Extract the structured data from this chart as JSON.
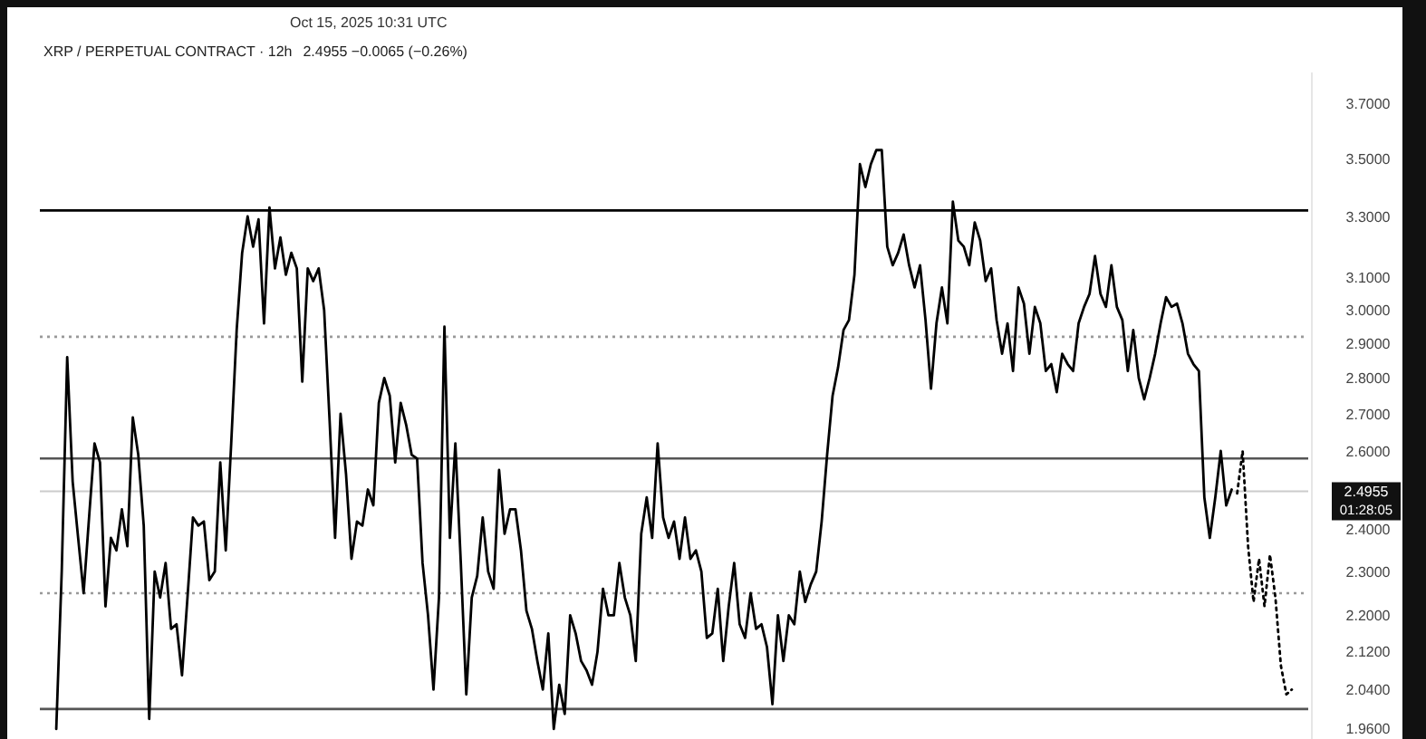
{
  "chart_data": {
    "type": "line",
    "title": "XRP / PERPETUAL CONTRACT · 12h",
    "subtitle": "2.4955 −0.0065 (−0.26%)",
    "annotations": [
      "Oct 15, 2025 10:31 UTC",
      "01:28:05"
    ],
    "categories": [
      null,
      null,
      null,
      null,
      null,
      null,
      null,
      null,
      null,
      null,
      null,
      null,
      null,
      null,
      null,
      null,
      null,
      null,
      null,
      null,
      null,
      null,
      null,
      null,
      null,
      null,
      null,
      null,
      null,
      null,
      null,
      null,
      null,
      null,
      null,
      null,
      null,
      null,
      null,
      null,
      null,
      null,
      null,
      null,
      null,
      null,
      null,
      null,
      null,
      null,
      null,
      null,
      null,
      null,
      null,
      null,
      null,
      null,
      null,
      null,
      null,
      null,
      null,
      null,
      null,
      null,
      null,
      null,
      null,
      null,
      null,
      null,
      null,
      null,
      null,
      null,
      null,
      null,
      null,
      null,
      null,
      null,
      null,
      null,
      null,
      null,
      null,
      null,
      null,
      null,
      null,
      null,
      null,
      null,
      null,
      null,
      null,
      null,
      null,
      null,
      null,
      null,
      null,
      null,
      null,
      null,
      null,
      null,
      null,
      null,
      null,
      null,
      null,
      null,
      null,
      null,
      null,
      null,
      null,
      null,
      null,
      null,
      null,
      null,
      null,
      null,
      null,
      null,
      null,
      null,
      null,
      null,
      null,
      null,
      null,
      null,
      null,
      null,
      null,
      null,
      null,
      null,
      null,
      null,
      null,
      null,
      null,
      null,
      null,
      null,
      null,
      null,
      null,
      null,
      null,
      null,
      null,
      null,
      null,
      null,
      null,
      null,
      null,
      null,
      null,
      null,
      null,
      null,
      null,
      null,
      null,
      null,
      null,
      null,
      null,
      null,
      null,
      null,
      null,
      null,
      null,
      null,
      null,
      null,
      null,
      null,
      null,
      null,
      null,
      null,
      null,
      null,
      null,
      null,
      null,
      null,
      null,
      null,
      null,
      null,
      null,
      null,
      null,
      null,
      null,
      null,
      null,
      null,
      null,
      null,
      null,
      null,
      null,
      null,
      null,
      null,
      null,
      null,
      null,
      null,
      null,
      null,
      null,
      null,
      null,
      null,
      null
    ],
    "series": [
      {
        "color": "#000000",
        "line_style": "solid",
        "values": [
          1.96,
          2.3,
          2.86,
          2.52,
          2.38,
          2.25,
          2.43,
          2.62,
          2.57,
          2.22,
          2.38,
          2.35,
          2.45,
          2.36,
          2.69,
          2.59,
          2.41,
          1.98,
          2.3,
          2.24,
          2.32,
          2.17,
          2.18,
          2.07,
          2.24,
          2.43,
          2.41,
          2.42,
          2.28,
          2.3,
          2.57,
          2.35,
          2.62,
          2.94,
          3.18,
          3.3,
          3.2,
          3.29,
          2.96,
          3.33,
          3.13,
          3.23,
          3.11,
          3.18,
          3.13,
          2.79,
          3.13,
          3.09,
          3.13,
          3.0,
          2.68,
          2.38,
          2.7,
          2.54,
          2.33,
          2.42,
          2.41,
          2.5,
          2.46,
          2.73,
          2.8,
          2.75,
          2.57,
          2.73,
          2.67,
          2.59,
          2.58,
          2.32,
          2.2,
          2.04,
          2.24,
          2.95,
          2.38,
          2.62,
          2.32,
          2.03,
          2.24,
          2.29,
          2.43,
          2.3,
          2.26,
          2.55,
          2.39,
          2.45,
          2.45,
          2.35,
          2.21,
          2.17,
          2.1,
          2.04,
          2.16,
          1.96,
          2.05,
          1.99,
          2.2,
          2.16,
          2.1,
          2.08,
          2.05,
          2.12,
          2.26,
          2.2,
          2.2,
          2.32,
          2.24,
          2.2,
          2.1,
          2.39,
          2.48,
          2.38,
          2.62,
          2.43,
          2.38,
          2.42,
          2.33,
          2.43,
          2.33,
          2.35,
          2.3,
          2.15,
          2.16,
          2.26,
          2.1,
          2.22,
          2.32,
          2.18,
          2.15,
          2.25,
          2.17,
          2.18,
          2.13,
          2.01,
          2.2,
          2.1,
          2.2,
          2.18,
          2.3,
          2.23,
          2.27,
          2.3,
          2.42,
          2.59,
          2.75,
          2.83,
          2.94,
          2.97,
          3.11,
          3.48,
          3.4,
          3.48,
          3.53,
          3.53,
          3.2,
          3.14,
          3.18,
          3.24,
          3.14,
          3.07,
          3.14,
          2.97,
          2.77,
          2.96,
          3.07,
          2.96,
          3.35,
          3.22,
          3.2,
          3.14,
          3.28,
          3.22,
          3.09,
          3.13,
          2.97,
          2.87,
          2.96,
          2.82,
          3.07,
          3.02,
          2.87,
          3.01,
          2.96,
          2.82,
          2.84,
          2.76,
          2.87,
          2.84,
          2.82,
          2.96,
          3.01,
          3.05,
          3.17,
          3.05,
          3.01,
          3.14,
          3.01,
          2.97,
          2.82,
          2.94,
          2.8,
          2.74,
          2.8,
          2.87,
          2.96,
          3.04,
          3.01,
          3.02,
          2.96,
          2.87,
          2.84,
          2.82,
          2.48,
          2.38,
          2.48,
          2.6,
          2.46,
          2.5,
          null,
          null,
          null,
          null,
          null,
          null,
          null,
          null,
          null,
          null,
          null
        ]
      },
      {
        "color": "#000000",
        "line_style": "dotted",
        "values": [
          null,
          null,
          null,
          null,
          null,
          null,
          null,
          null,
          null,
          null,
          null,
          null,
          null,
          null,
          null,
          null,
          null,
          null,
          null,
          null,
          null,
          null,
          null,
          null,
          null,
          null,
          null,
          null,
          null,
          null,
          null,
          null,
          null,
          null,
          null,
          null,
          null,
          null,
          null,
          null,
          null,
          null,
          null,
          null,
          null,
          null,
          null,
          null,
          null,
          null,
          null,
          null,
          null,
          null,
          null,
          null,
          null,
          null,
          null,
          null,
          null,
          null,
          null,
          null,
          null,
          null,
          null,
          null,
          null,
          null,
          null,
          null,
          null,
          null,
          null,
          null,
          null,
          null,
          null,
          null,
          null,
          null,
          null,
          null,
          null,
          null,
          null,
          null,
          null,
          null,
          null,
          null,
          null,
          null,
          null,
          null,
          null,
          null,
          null,
          null,
          null,
          null,
          null,
          null,
          null,
          null,
          null,
          null,
          null,
          null,
          null,
          null,
          null,
          null,
          null,
          null,
          null,
          null,
          null,
          null,
          null,
          null,
          null,
          null,
          null,
          null,
          null,
          null,
          null,
          null,
          null,
          null,
          null,
          null,
          null,
          null,
          null,
          null,
          null,
          null,
          null,
          null,
          null,
          null,
          null,
          null,
          null,
          null,
          null,
          null,
          null,
          null,
          null,
          null,
          null,
          null,
          null,
          null,
          null,
          null,
          null,
          null,
          null,
          null,
          null,
          null,
          null,
          null,
          null,
          null,
          null,
          null,
          null,
          null,
          null,
          null,
          null,
          null,
          null,
          null,
          null,
          null,
          null,
          null,
          null,
          null,
          null,
          null,
          null,
          null,
          null,
          null,
          null,
          null,
          null,
          null,
          null,
          null,
          null,
          null,
          null,
          null,
          null,
          null,
          null,
          null,
          null,
          null,
          null,
          null,
          null,
          null,
          null,
          null,
          null,
          null,
          2.49,
          2.6,
          2.36,
          2.23,
          2.33,
          2.22,
          2.34,
          2.24,
          2.09,
          2.03,
          2.04
        ]
      }
    ],
    "log": "y",
    "ylim": [
      1.94,
      3.82
    ],
    "yticks": [
      {
        "value": 3.7,
        "label": "3.7000"
      },
      {
        "value": 3.5,
        "label": "3.5000"
      },
      {
        "value": 3.3,
        "label": "3.3000"
      },
      {
        "value": 3.1,
        "label": "3.1000"
      },
      {
        "value": 3.0,
        "label": "3.0000"
      },
      {
        "value": 2.9,
        "label": "2.9000"
      },
      {
        "value": 2.8,
        "label": "2.8000"
      },
      {
        "value": 2.7,
        "label": "2.7000"
      },
      {
        "value": 2.6,
        "label": "2.6000"
      },
      {
        "value": 2.4,
        "label": "2.4000"
      },
      {
        "value": 2.3,
        "label": "2.3000"
      },
      {
        "value": 2.2,
        "label": "2.2000"
      },
      {
        "value": 2.12,
        "label": "2.1200"
      },
      {
        "value": 2.04,
        "label": "2.0400"
      },
      {
        "value": 1.96,
        "label": "1.9600"
      }
    ],
    "ref_lines": [
      {
        "axis": "y",
        "value": 3.32,
        "color": "#000000",
        "line_style": "solid"
      },
      {
        "axis": "y",
        "value": 2.92,
        "color": "#999999",
        "line_style": "dotted"
      },
      {
        "axis": "y",
        "value": 2.58,
        "color": "#555555",
        "line_style": "solid"
      },
      {
        "axis": "y",
        "value": 2.4955,
        "label": "2.4955",
        "color": "#cccccc",
        "line_style": "solid"
      },
      {
        "axis": "y",
        "value": 2.25,
        "color": "#999999",
        "line_style": "dotted"
      },
      {
        "axis": "y",
        "value": 2.0,
        "color": "#555555",
        "line_style": "solid"
      }
    ],
    "grid": false,
    "marker": "none"
  }
}
